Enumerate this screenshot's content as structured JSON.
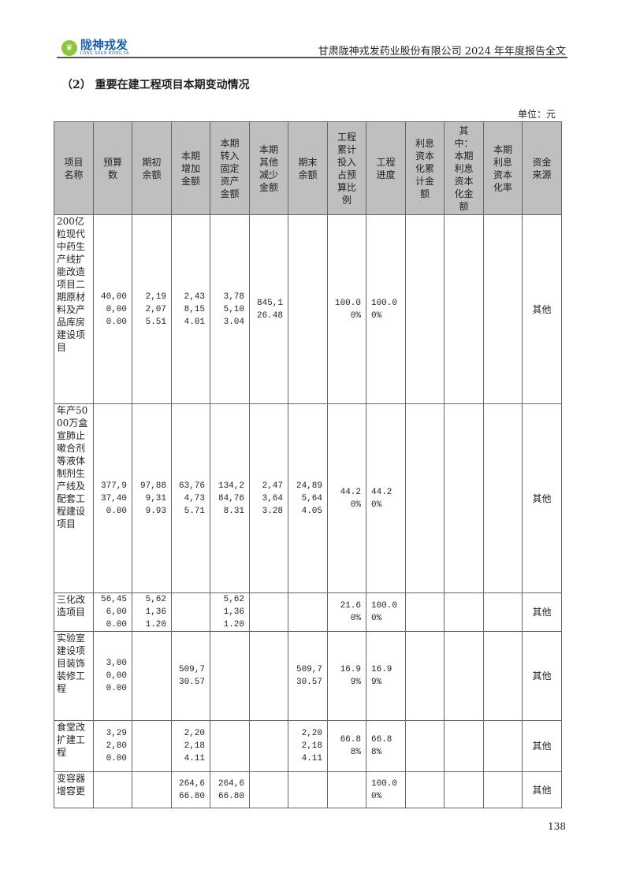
{
  "header": {
    "logo_cn": "陇神戎发",
    "logo_en": "LONG SHEN RONG FA",
    "doc_title": "甘肃陇神戎发药业股份有限公司 2024 年年度报告全文"
  },
  "section_title": "（2） 重要在建工程项目本期变动情况",
  "unit": "单位：元",
  "table": {
    "headers": [
      "项目名称",
      "预算数",
      "期初余额",
      "本期增加金额",
      "本期转入固定资产金额",
      "本期其他减少金额",
      "期末余额",
      "工程累计投入占预算比例",
      "工程进度",
      "利息资本化累计金额",
      "其中：本期利息资本化金额",
      "本期利息资本化率",
      "资金来源"
    ],
    "rows": [
      [
        "200亿粒现代中药生产线扩能改造项目二期原材料及产品库房建设项目",
        "40,000,000.00",
        "2,192,075.51",
        "2,438,154.01",
        "3,785,103.04",
        "845,126.48",
        "",
        "100.00%",
        "100.00%",
        "",
        "",
        "",
        "其他"
      ],
      [
        "年产5000万盒宣肺止嗽合剂等液体制剂生产线及配套工程建设项目",
        "377,937,400.00",
        "97,889,319.93",
        "63,764,735.71",
        "134,284,768.31",
        "2,473,643.28",
        "24,895,644.05",
        "44.20%",
        "44.20%",
        "",
        "",
        "",
        "其他"
      ],
      [
        "三化改造项目",
        "56,456,000.00",
        "5,621,361.20",
        "",
        "5,621,361.20",
        "",
        "",
        "21.60%",
        "100.00%",
        "",
        "",
        "",
        "其他"
      ],
      [
        "实验室建设项目装饰装修工程",
        "3,000,000.00",
        "",
        "509,730.57",
        "",
        "",
        "509,730.57",
        "16.99%",
        "16.99%",
        "",
        "",
        "",
        "其他"
      ],
      [
        "食堂改扩建工程",
        "3,292,800.00",
        "",
        "2,202,184.11",
        "",
        "",
        "2,202,184.11",
        "66.88%",
        "66.88%",
        "",
        "",
        "",
        "其他"
      ],
      [
        "变容器增容更",
        "",
        "",
        "264,666.80",
        "264,666.80",
        "",
        "",
        "",
        "100.00%",
        "",
        "",
        "",
        "其他"
      ]
    ]
  },
  "page_number": "138"
}
